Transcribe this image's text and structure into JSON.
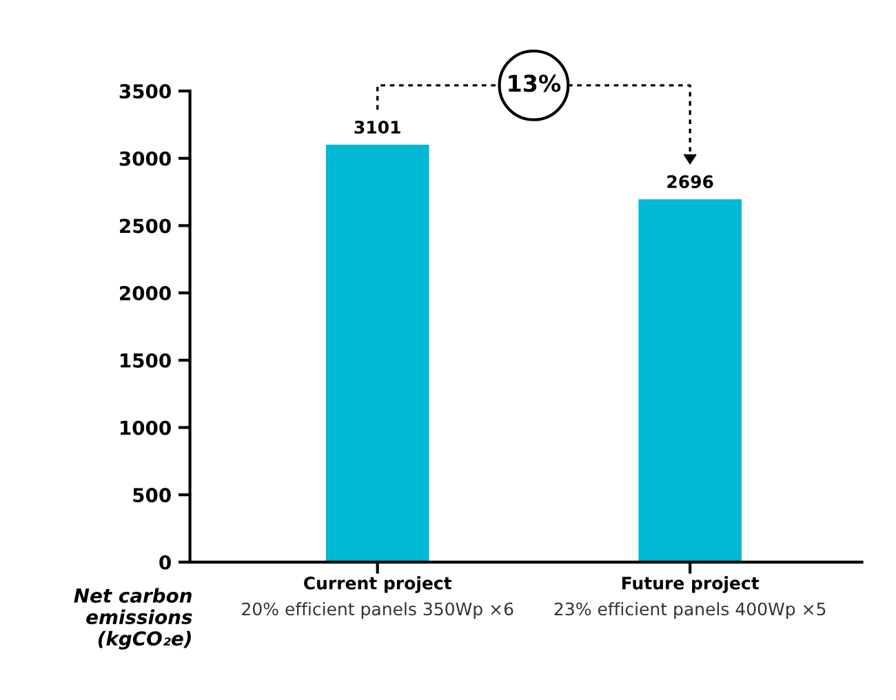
{
  "chart_data": {
    "type": "bar",
    "categories": [
      "Current project\n20% efficient panels 350Wp ×6",
      "Future project\n23% efficient panels 400Wp ×5"
    ],
    "values": [
      3101,
      2696
    ],
    "color": "#00b8d4",
    "data_labels": true,
    "ylabel": "Net carbon\nemissions\n(kgCO₂e)",
    "ylim": [
      0,
      3500
    ],
    "yticks": [
      0,
      500,
      1000,
      1500,
      2000,
      2500,
      3000,
      3500
    ],
    "annotations": [
      "13%"
    ],
    "grid": false,
    "legend": false
  }
}
